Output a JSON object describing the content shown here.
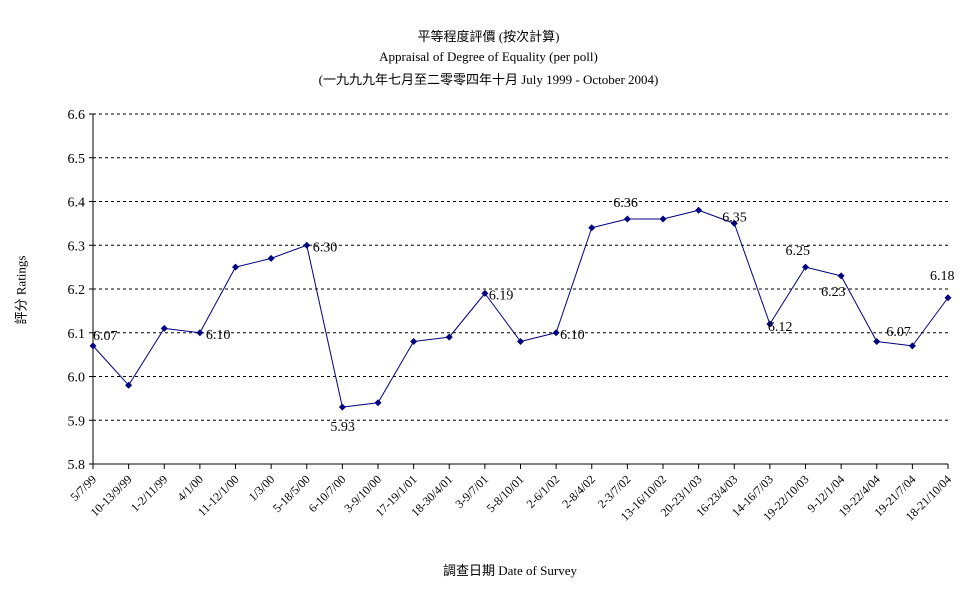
{
  "chart_data": {
    "type": "line",
    "title": "平等程度評價 (按次計算)",
    "subtitle": "Appraisal of Degree of Equality (per poll)",
    "subtitle2": "(一九九九年七月至二零零四年十月 July 1999 - October 2004)",
    "xlabel": "調查日期 Date of Survey",
    "ylabel": "評分 Ratings",
    "ylim": [
      5.8,
      6.6
    ],
    "yticks": [
      "6.6",
      "6.5",
      "6.4",
      "6.3",
      "6.2",
      "6.1",
      "6.0",
      "5.9",
      "5.8"
    ],
    "grid": "horizontal dashed",
    "categories": [
      "5/7/99",
      "10-13/9/99",
      "1-2/11/99",
      "4/1/00",
      "11-12/1/00",
      "1/3/00",
      "5-18/5/00",
      "6-10/7/00",
      "3-9/10/00",
      "17-19/1/01",
      "18-30/4/01",
      "3-9/7/01",
      "5-8/10/01",
      "2-6/1/02",
      "2-8/4/02",
      "2-3/7/02",
      "13-16/10/02",
      "20-23/1/03",
      "16-23/4/03",
      "14-16/7/03",
      "19-22/10/03",
      "9-12/1/04",
      "19-22/4/04",
      "19-21/7/04",
      "18-21/10/04"
    ],
    "series": [
      {
        "color": "#000080",
        "values": [
          6.07,
          5.98,
          6.11,
          6.1,
          6.25,
          6.27,
          6.3,
          5.93,
          5.94,
          6.08,
          6.09,
          6.19,
          6.08,
          6.1,
          6.34,
          6.36,
          6.36,
          6.38,
          6.35,
          6.12,
          6.25,
          6.23,
          6.08,
          6.07,
          6.18
        ]
      }
    ],
    "data_labels": [
      {
        "index": 0,
        "text": "6.07"
      },
      {
        "index": 3,
        "text": "6.10"
      },
      {
        "index": 6,
        "text": "6.30"
      },
      {
        "index": 7,
        "text": "5.93"
      },
      {
        "index": 11,
        "text": "6.19"
      },
      {
        "index": 13,
        "text": "6.10"
      },
      {
        "index": 15,
        "text": "6.36"
      },
      {
        "index": 18,
        "text": "6.35"
      },
      {
        "index": 19,
        "text": "6.12"
      },
      {
        "index": 20,
        "text": "6.25"
      },
      {
        "index": 21,
        "text": "6.23"
      },
      {
        "index": 23,
        "text": "6.07"
      },
      {
        "index": 24,
        "text": "6.18"
      }
    ]
  }
}
